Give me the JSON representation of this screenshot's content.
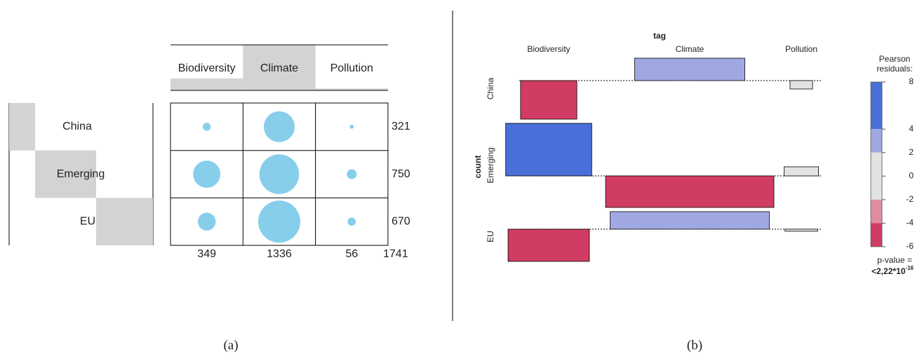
{
  "chart_data": [
    {
      "type": "balloon",
      "columns": [
        "Biodiversity",
        "Climate",
        "Pollution"
      ],
      "rows": [
        "China",
        "Emerging",
        "EU"
      ],
      "values": [
        [
          20,
          296,
          5
        ],
        [
          230,
          490,
          30
        ],
        [
          99,
          550,
          21
        ]
      ],
      "row_totals": [
        321,
        750,
        670
      ],
      "column_totals": [
        349,
        1336,
        56
      ],
      "grand_total": 1741,
      "color": "#87ceeb",
      "caption": "(a)"
    },
    {
      "type": "association",
      "x_label": "tag",
      "y_label": "count",
      "columns": [
        "Biodiversity",
        "Climate",
        "Pollution"
      ],
      "rows": [
        "China",
        "Emerging",
        "EU"
      ],
      "values": [
        [
          -5.5,
          3.2,
          -1.2
        ],
        [
          7.5,
          -4.5,
          1.3
        ],
        [
          -4.6,
          2.5,
          -0.3
        ]
      ],
      "legend": {
        "title": [
          "Pearson",
          "residuals:"
        ],
        "ylim": [
          -6,
          8
        ],
        "yticks": [
          8,
          4,
          2,
          0,
          -2,
          -4,
          -6
        ],
        "bands": [
          {
            "from": 4,
            "to": 8,
            "color": "#4a6fd8"
          },
          {
            "from": 2,
            "to": 4,
            "color": "#a0a8e2"
          },
          {
            "from": -2,
            "to": 2,
            "color": "#e2e2e2"
          },
          {
            "from": -4,
            "to": -2,
            "color": "#e28ca4"
          },
          {
            "from": -6,
            "to": -4,
            "color": "#d03c62"
          }
        ]
      },
      "p_value_label": "p-value =",
      "p_value": "<2,22*10",
      "p_value_exponent": "-16",
      "caption": "(b)"
    }
  ]
}
